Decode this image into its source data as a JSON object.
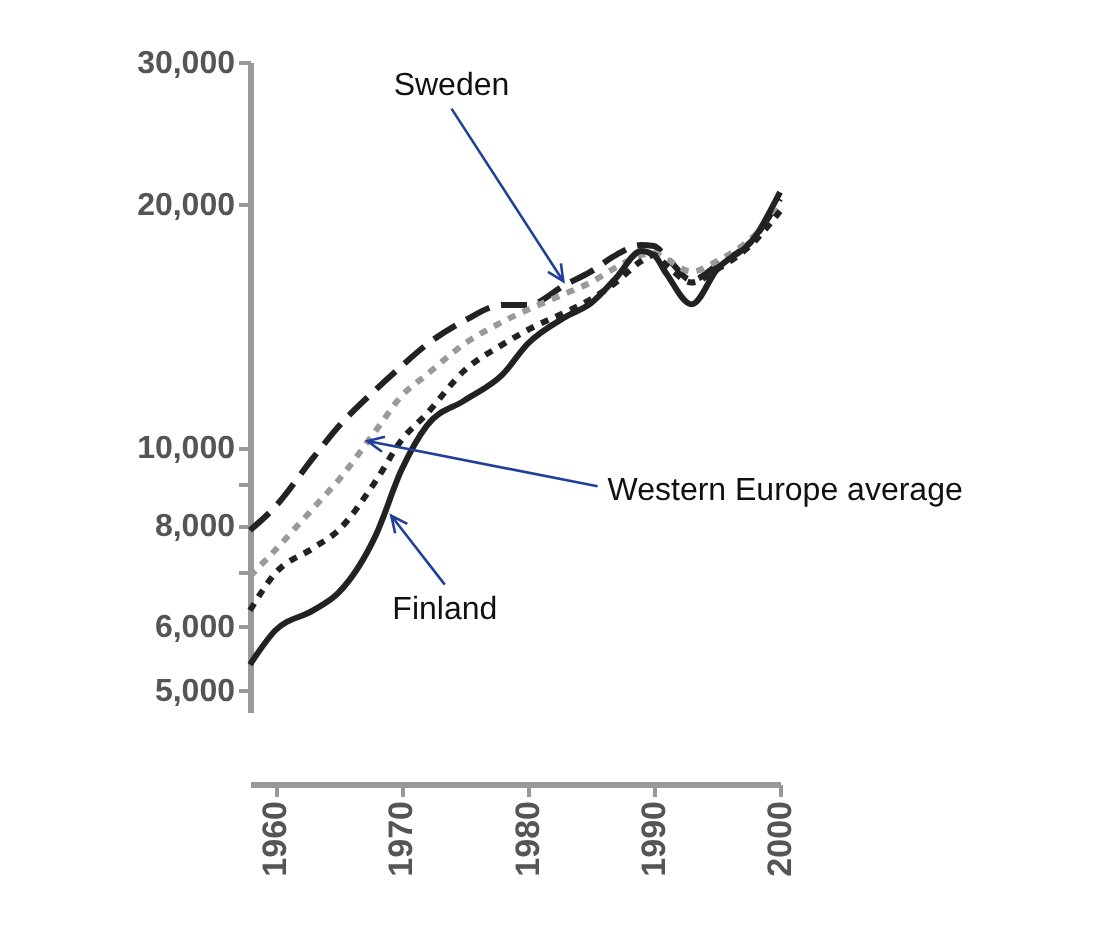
{
  "chart_data": {
    "type": "line",
    "log": "y",
    "x": [
      1958,
      1960,
      1963,
      1965,
      1968,
      1970,
      1972,
      1975,
      1978,
      1980,
      1983,
      1985,
      1987,
      1989,
      1990,
      1991,
      1993,
      1995,
      1998,
      2000
    ],
    "series": [
      {
        "color": "#222222",
        "line_style": "dashed",
        "values": [
          7890,
          8440,
          9700,
          10600,
          11800,
          12600,
          13400,
          14350,
          15000,
          15000,
          15900,
          16500,
          17300,
          17800,
          17750,
          17200,
          16100,
          16800,
          18200,
          20300
        ]
      },
      {
        "color": "#9a9a9a",
        "line_style": "dotted",
        "values": [
          6920,
          7460,
          8400,
          9100,
          10500,
          11570,
          12300,
          13430,
          14300,
          14800,
          15500,
          16000,
          16700,
          17300,
          17400,
          17100,
          16500,
          17000,
          18300,
          19800
        ]
      },
      {
        "color": "#222222",
        "line_style": "dotted",
        "values": [
          6280,
          6980,
          7500,
          7890,
          9100,
          10200,
          11000,
          12450,
          13400,
          13970,
          14700,
          15250,
          16000,
          17000,
          17300,
          16800,
          16000,
          16600,
          18000,
          19600
        ]
      },
      {
        "color": "#222222",
        "line_style": "solid",
        "values": [
          5380,
          5930,
          6280,
          6600,
          7800,
          9370,
          10630,
          11430,
          12300,
          13430,
          14500,
          15070,
          16200,
          17500,
          17300,
          16400,
          15030,
          16600,
          18200,
          20700
        ]
      }
    ],
    "xlim": [
      1958,
      2000
    ],
    "xticks": [
      1960,
      1970,
      1980,
      1990,
      2000
    ],
    "ylim": [
      4700,
      30000
    ],
    "yticks": [
      {
        "value": 5000,
        "label": "5,000"
      },
      {
        "value": 6000,
        "label": "6,000"
      },
      {
        "value": 7000,
        "label": null
      },
      {
        "value": 8000,
        "label": "8,000"
      },
      {
        "value": 9000,
        "label": null
      },
      {
        "value": 10000,
        "label": "10,000"
      },
      {
        "value": 20000,
        "label": "20,000"
      },
      {
        "value": 30000,
        "label": "30,000"
      }
    ],
    "annotations": [
      {
        "text": "Sweden",
        "x": 1983,
        "y": 15900
      },
      {
        "text": "Western Europe average",
        "x": 1967,
        "y": 10200
      },
      {
        "text": "Finland",
        "x": 1969,
        "y": 8300
      }
    ],
    "grid": false,
    "legend": false
  }
}
